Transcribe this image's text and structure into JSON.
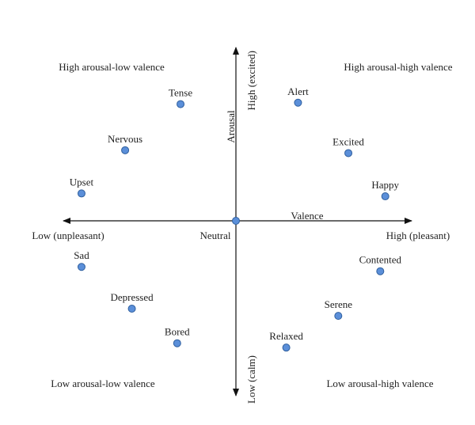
{
  "colors": {
    "axis": "#111111",
    "point_fill": "#5b8fd9",
    "point_stroke": "#2f5f9e",
    "text": "#222222"
  },
  "quadrants": {
    "top_left": "High arousal-low valence",
    "top_right": "High arousal-high valence",
    "bottom_left": "Low arousal-low valence",
    "bottom_right": "Low arousal-high valence"
  },
  "axes": {
    "y_top": "High (excited)",
    "y_name": "Arousal",
    "y_bottom": "Low (calm)",
    "x_left": "Low (unpleasant)",
    "x_name": "Valence",
    "x_right": "High (pleasant)",
    "origin": "Neutral"
  },
  "points": [
    {
      "id": "tense",
      "label": "Tense",
      "valence": -0.33,
      "arousal": 0.81
    },
    {
      "id": "alert",
      "label": "Alert",
      "valence": 0.37,
      "arousal": 0.82
    },
    {
      "id": "nervous",
      "label": "Nervous",
      "valence": -0.66,
      "arousal": 0.49
    },
    {
      "id": "excited",
      "label": "Excited",
      "valence": 0.67,
      "arousal": 0.47
    },
    {
      "id": "upset",
      "label": "Upset",
      "valence": -0.92,
      "arousal": 0.19
    },
    {
      "id": "happy",
      "label": "Happy",
      "valence": 0.89,
      "arousal": 0.17
    },
    {
      "id": "neutral",
      "label": "",
      "valence": 0.0,
      "arousal": 0.0
    },
    {
      "id": "sad",
      "label": "Sad",
      "valence": -0.92,
      "arousal": -0.32
    },
    {
      "id": "contented",
      "label": "Contented",
      "valence": 0.86,
      "arousal": -0.35
    },
    {
      "id": "depressed",
      "label": "Depressed",
      "valence": -0.62,
      "arousal": -0.61
    },
    {
      "id": "serene",
      "label": "Serene",
      "valence": 0.61,
      "arousal": -0.66
    },
    {
      "id": "bored",
      "label": "Bored",
      "valence": -0.35,
      "arousal": -0.85
    },
    {
      "id": "relaxed",
      "label": "Relaxed",
      "valence": 0.3,
      "arousal": -0.88
    }
  ]
}
